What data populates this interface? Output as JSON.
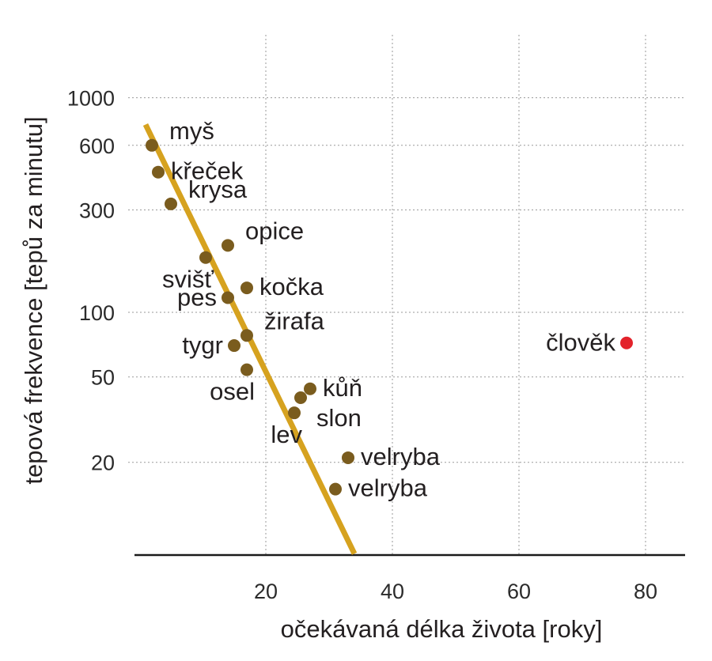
{
  "chart_data": {
    "type": "scatter",
    "x_scale": "linear",
    "y_scale": "log",
    "xlabel": "očekávaná délka života [roky]",
    "ylabel": "tepová frekvence [tepů za minutu]",
    "xlim": [
      -2,
      86
    ],
    "ylim": [
      8,
      1000
    ],
    "x_ticks": [
      20,
      40,
      60,
      80
    ],
    "y_ticks": [
      20,
      50,
      100,
      300,
      600,
      1000
    ],
    "grid": true,
    "trendline": {
      "color": "#d6a21f",
      "points": [
        [
          1,
          750
        ],
        [
          34,
          7.5
        ]
      ]
    },
    "colors": {
      "animal": "#7a5c1e",
      "human": "#e3232b",
      "trend": "#d6a21f"
    },
    "points": [
      {
        "label": "myš",
        "x": 2,
        "y": 600,
        "color": "#7a5c1e",
        "anchor": "upper-right"
      },
      {
        "label": "křeček",
        "x": 3,
        "y": 450,
        "color": "#7a5c1e",
        "anchor": "right"
      },
      {
        "label": "krysa",
        "x": 5,
        "y": 320,
        "color": "#7a5c1e",
        "anchor": "upper-right"
      },
      {
        "label": "opice",
        "x": 14,
        "y": 205,
        "color": "#7a5c1e",
        "anchor": "upper-right"
      },
      {
        "label": "svišť",
        "x": 10.5,
        "y": 180,
        "color": "#7a5c1e",
        "anchor": "lower-left"
      },
      {
        "label": "kočka",
        "x": 17,
        "y": 130,
        "color": "#7a5c1e",
        "anchor": "right"
      },
      {
        "label": "pes",
        "x": 14,
        "y": 117,
        "color": "#7a5c1e",
        "anchor": "left"
      },
      {
        "label": "žirafa",
        "x": 17,
        "y": 78,
        "color": "#7a5c1e",
        "anchor": "upper-right"
      },
      {
        "label": "tygr",
        "x": 15,
        "y": 70,
        "color": "#7a5c1e",
        "anchor": "left"
      },
      {
        "label": "osel",
        "x": 17,
        "y": 54,
        "color": "#7a5c1e",
        "anchor": "lower-left"
      },
      {
        "label": "kůň",
        "x": 27,
        "y": 44,
        "color": "#7a5c1e",
        "anchor": "right"
      },
      {
        "label": "slon",
        "x": 25.5,
        "y": 40,
        "color": "#7a5c1e",
        "anchor": "lower-right"
      },
      {
        "label": "lev",
        "x": 24.5,
        "y": 34,
        "color": "#7a5c1e",
        "anchor": "lower-left"
      },
      {
        "label": "velryba",
        "x": 33,
        "y": 21,
        "color": "#7a5c1e",
        "anchor": "right"
      },
      {
        "label": "velryba",
        "x": 31,
        "y": 15,
        "color": "#7a5c1e",
        "anchor": "right"
      },
      {
        "label": "člověk",
        "x": 77,
        "y": 72,
        "color": "#e3232b",
        "anchor": "left"
      }
    ]
  }
}
